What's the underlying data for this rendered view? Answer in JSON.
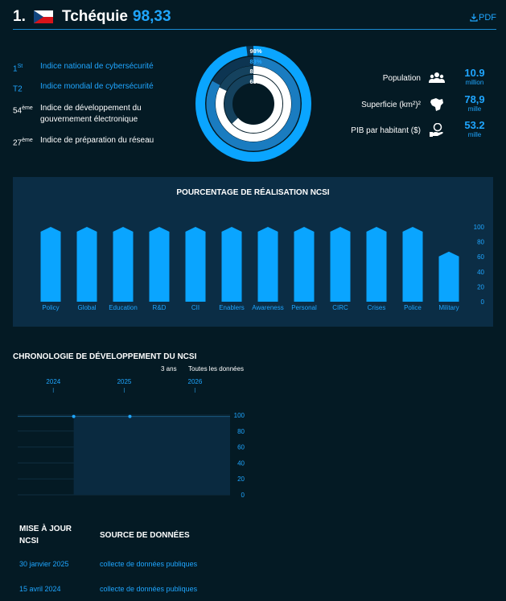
{
  "header": {
    "rank": "1.",
    "country": "Tchéquie",
    "score": "98,33",
    "pdf_label": "PDF"
  },
  "indices": [
    {
      "rank": "1",
      "sup": "St",
      "label": "Indice national de cybersécurité",
      "color": "blue"
    },
    {
      "rank": "T2",
      "sup": "",
      "label": "Indice mondial de cybersécurité",
      "color": "blue"
    },
    {
      "rank": "54",
      "sup": "ème",
      "label": "Indice de développement du gouvernement électronique",
      "color": "white"
    },
    {
      "rank": "27",
      "sup": "ème",
      "label": "Indice de préparation du réseau",
      "color": "white"
    }
  ],
  "donut": {
    "rings": [
      {
        "label": "98%",
        "value": 98
      },
      {
        "label": "83%",
        "value": 83
      },
      {
        "label": "82%",
        "value": 82
      },
      {
        "label": "63%",
        "value": 63
      }
    ]
  },
  "stats": [
    {
      "label": "Population",
      "value": "10.9",
      "unit": "million",
      "icon": "people-icon"
    },
    {
      "label": "Superficie (km²)²",
      "value": "78,9",
      "unit": "mille",
      "icon": "map-icon"
    },
    {
      "label": "PIB par habitant ($)",
      "value": "53.2",
      "unit": "mille",
      "icon": "money-hand-icon"
    }
  ],
  "chart_data": [
    {
      "type": "bar",
      "title": "POURCENTAGE DE RÉALISATION NCSI",
      "categories": [
        "Policy",
        "Global",
        "Education",
        "R&D",
        "CII",
        "Enablers",
        "Awareness",
        "Personal",
        "CIRC",
        "Crises",
        "Police",
        "Military"
      ],
      "values": [
        100,
        100,
        100,
        100,
        100,
        100,
        100,
        100,
        100,
        100,
        100,
        67
      ],
      "y_ticks": [
        "0",
        "20",
        "40",
        "60",
        "80",
        "100"
      ],
      "ylim": [
        0,
        100
      ],
      "color": "#0aa5ff"
    },
    {
      "type": "area",
      "title": "CHRONOLOGIE DE DÉVELOPPEMENT DU NCSI",
      "x_ticks": [
        "2024",
        "2025",
        "2026"
      ],
      "x": [
        "2024-04-15",
        "2025-01-30"
      ],
      "values": [
        98.33,
        98.33
      ],
      "y_ticks": [
        "0",
        "20",
        "40",
        "60",
        "80",
        "100"
      ],
      "ylim": [
        0,
        100
      ],
      "buttons": [
        "3 ans",
        "Toutes les données"
      ]
    }
  ],
  "updates": {
    "col1_header": "MISE À JOUR NCSI",
    "col2_header": "SOURCE DE DONNÉES",
    "rows": [
      {
        "date": "30 janvier 2025",
        "source": "collecte de données publiques"
      },
      {
        "date": "15 avril 2024",
        "source": "collecte de données publiques"
      }
    ]
  }
}
